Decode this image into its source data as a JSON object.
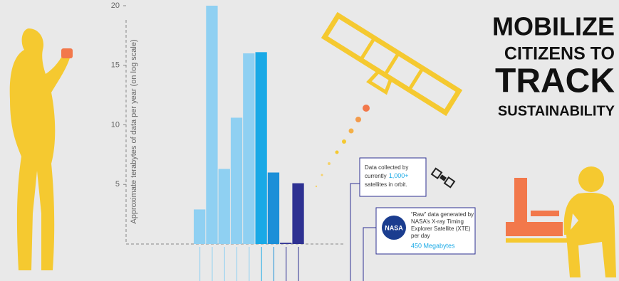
{
  "chart_data": {
    "type": "bar",
    "title_lines": [
      "MOBILIZE",
      "CITIZENS TO",
      "TRACK",
      "SUSTAINABILITY"
    ],
    "y_label": "Approximate terabytes of data per year (on log scale)",
    "categories": [
      null,
      null,
      null,
      null,
      null,
      null,
      null,
      null,
      null
    ],
    "values": [
      2.9,
      20,
      6.3,
      10.6,
      16.0,
      16.1,
      6.0,
      0.1,
      5.1
    ],
    "colors": [
      "#8fd0f2",
      "#8fd0f2",
      "#8fd0f2",
      "#8fd0f2",
      "#8fd0f2",
      "#19a9e6",
      "#1b8fd8",
      "#2e3192",
      "#2e3192"
    ],
    "ylim": [
      0,
      20
    ],
    "yticks": [
      5,
      10,
      15,
      20
    ],
    "annotations": [
      {
        "lines": [
          "Data collected by",
          "currently",
          "satellites in orbit."
        ],
        "highlight": "1,000+"
      },
      {
        "lines": [
          "“Raw” data generated by",
          "NASA’s X-ray Timing",
          "Explorer Satellite (XTE)",
          "per day"
        ],
        "highlight": "450 Megabytes",
        "logo": "NASA"
      }
    ]
  }
}
